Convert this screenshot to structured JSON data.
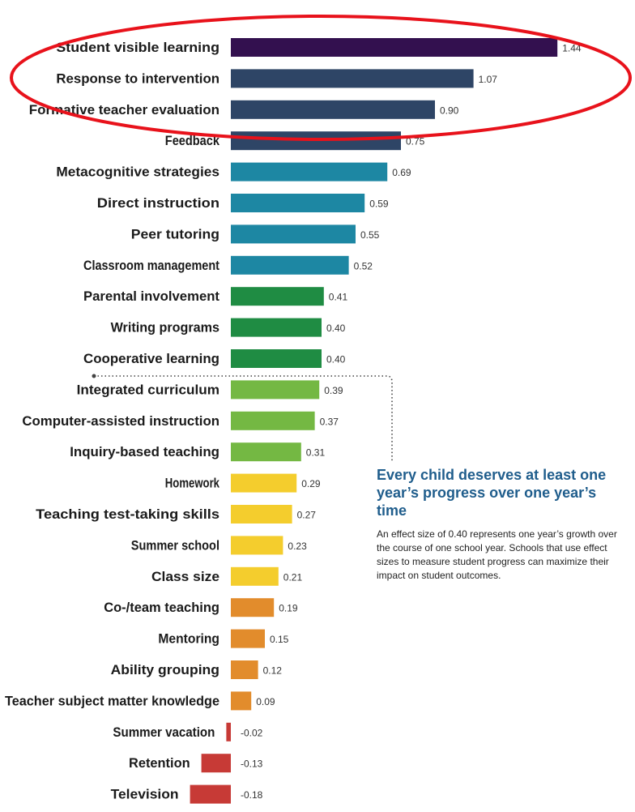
{
  "chart_data": {
    "type": "bar",
    "orientation": "horizontal",
    "categories": [
      "Student visible learning",
      "Response to intervention",
      "Formative teacher evaluation",
      "Feedback",
      "Metacognitive strategies",
      "Direct instruction",
      "Peer tutoring",
      "Classroom management",
      "Parental involvement",
      "Writing programs",
      "Cooperative learning",
      "Integrated curriculum",
      "Computer-assisted instruction",
      "Inquiry-based teaching",
      "Homework",
      "Teaching test-taking skills",
      "Summer school",
      "Class size",
      "Co-/team teaching",
      "Mentoring",
      "Ability grouping",
      "Teacher subject matter knowledge",
      "Summer vacation",
      "Retention",
      "Television"
    ],
    "values": [
      1.44,
      1.07,
      0.9,
      0.75,
      0.69,
      0.59,
      0.55,
      0.52,
      0.41,
      0.4,
      0.4,
      0.39,
      0.37,
      0.31,
      0.29,
      0.27,
      0.23,
      0.21,
      0.19,
      0.15,
      0.12,
      0.09,
      -0.02,
      -0.13,
      -0.18
    ],
    "value_labels": [
      "1.44",
      "1.07",
      "0.90",
      "0.75",
      "0.69",
      "0.59",
      "0.55",
      "0.52",
      "0.41",
      "0.40",
      "0.40",
      "0.39",
      "0.37",
      "0.31",
      "0.29",
      "0.27",
      "0.23",
      "0.21",
      "0.19",
      "0.15",
      "0.12",
      "0.09",
      "-0.02",
      "-0.13",
      "-0.18"
    ],
    "bar_colors": [
      "#33104f",
      "#2e4566",
      "#2e4566",
      "#2e4566",
      "#1d87a3",
      "#1d87a3",
      "#1d87a3",
      "#1d87a3",
      "#1f8c43",
      "#1f8c43",
      "#1f8c43",
      "#74b843",
      "#74b843",
      "#74b843",
      "#f4cd2d",
      "#f4cd2d",
      "#f4cd2d",
      "#f4cd2d",
      "#e28c2c",
      "#e28c2c",
      "#e28c2c",
      "#e28c2c",
      "#c73a36",
      "#c73a36",
      "#c73a36"
    ],
    "title": "",
    "xlabel": "",
    "ylabel": "",
    "xlim": [
      -0.2,
      1.5
    ],
    "grid": false,
    "legend": "none"
  },
  "callout": {
    "title": "Every child deserves at least one year’s progress over one year’s time",
    "body": "An effect size of 0.40 represents one year’s growth over the course of one school year. Schools that use effect sizes to measure student progress can maximize their impact on student outcomes."
  },
  "annotation": {
    "highlight_color": "#e8121b",
    "connector_color": "#444444"
  }
}
